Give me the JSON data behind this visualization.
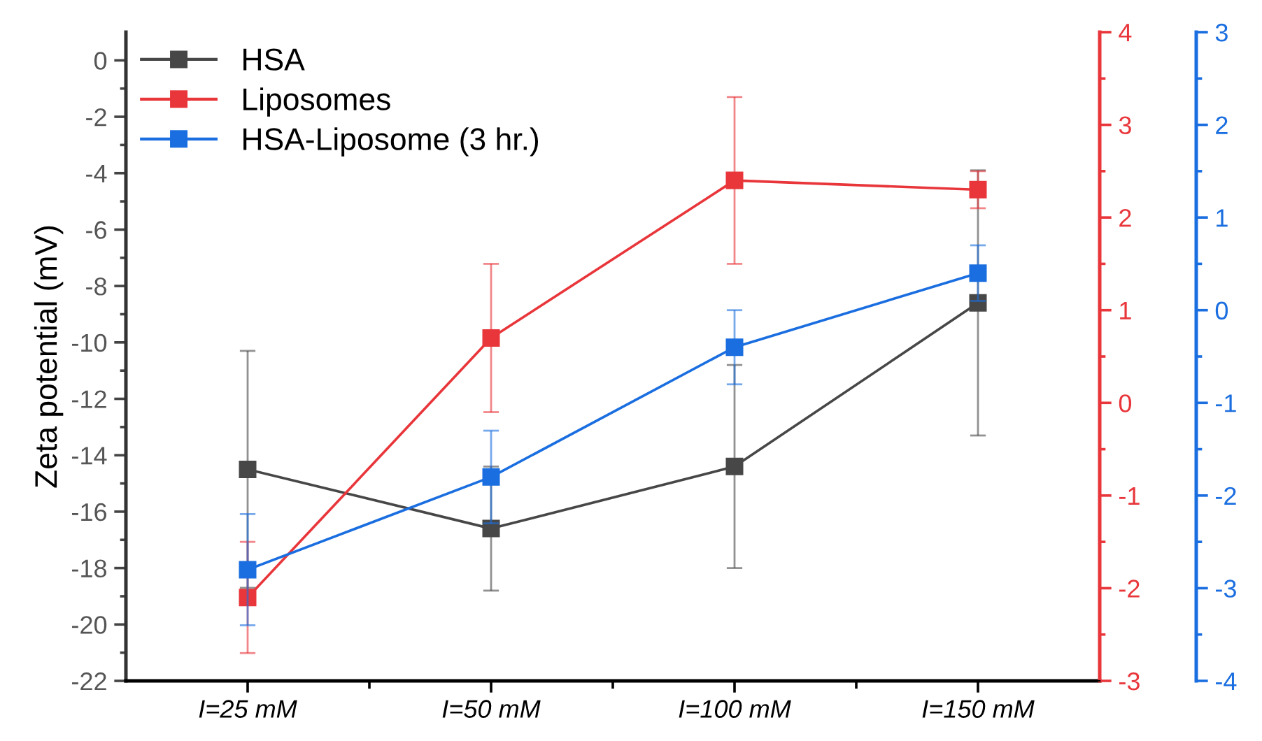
{
  "chart_data": {
    "type": "line",
    "ylabel": "Zeta potential (mV)",
    "categories": [
      "I=25 mM",
      "I=50 mM",
      "I=100 mM",
      "I=150 mM"
    ],
    "series": [
      {
        "name": "HSA",
        "color": "#474747",
        "values": [
          -14.5,
          -16.6,
          -14.4,
          -8.6
        ],
        "errors": [
          4.2,
          2.2,
          3.6,
          4.7
        ]
      },
      {
        "name": "Liposomes",
        "color": "#e8363b",
        "axis": "y2",
        "values": [
          -2.1,
          0.7,
          2.4,
          2.3
        ],
        "errors": [
          0.6,
          0.8,
          0.9,
          0.2
        ]
      },
      {
        "name": "HSA-Liposome (3 hr.)",
        "color": "#1a6ee0",
        "axis": "y3",
        "values": [
          -2.8,
          -1.8,
          -0.4,
          0.4
        ],
        "errors": [
          0.6,
          0.5,
          0.4,
          0.3
        ]
      }
    ],
    "ylim": [
      -22,
      1
    ],
    "yticks": [
      -22,
      -20,
      -18,
      -16,
      -14,
      -12,
      -10,
      -8,
      -6,
      -4,
      -2,
      0
    ],
    "y2lim": [
      -3,
      4
    ],
    "y2ticks": [
      -3,
      -2,
      -1,
      0,
      1,
      2,
      3,
      4
    ],
    "y3lim": [
      -4,
      3
    ],
    "y3ticks": [
      -4,
      -3,
      -2,
      -1,
      0,
      1,
      2,
      3
    ],
    "marker": "square",
    "line_style": "solid",
    "legend": "top left",
    "grid": false
  }
}
